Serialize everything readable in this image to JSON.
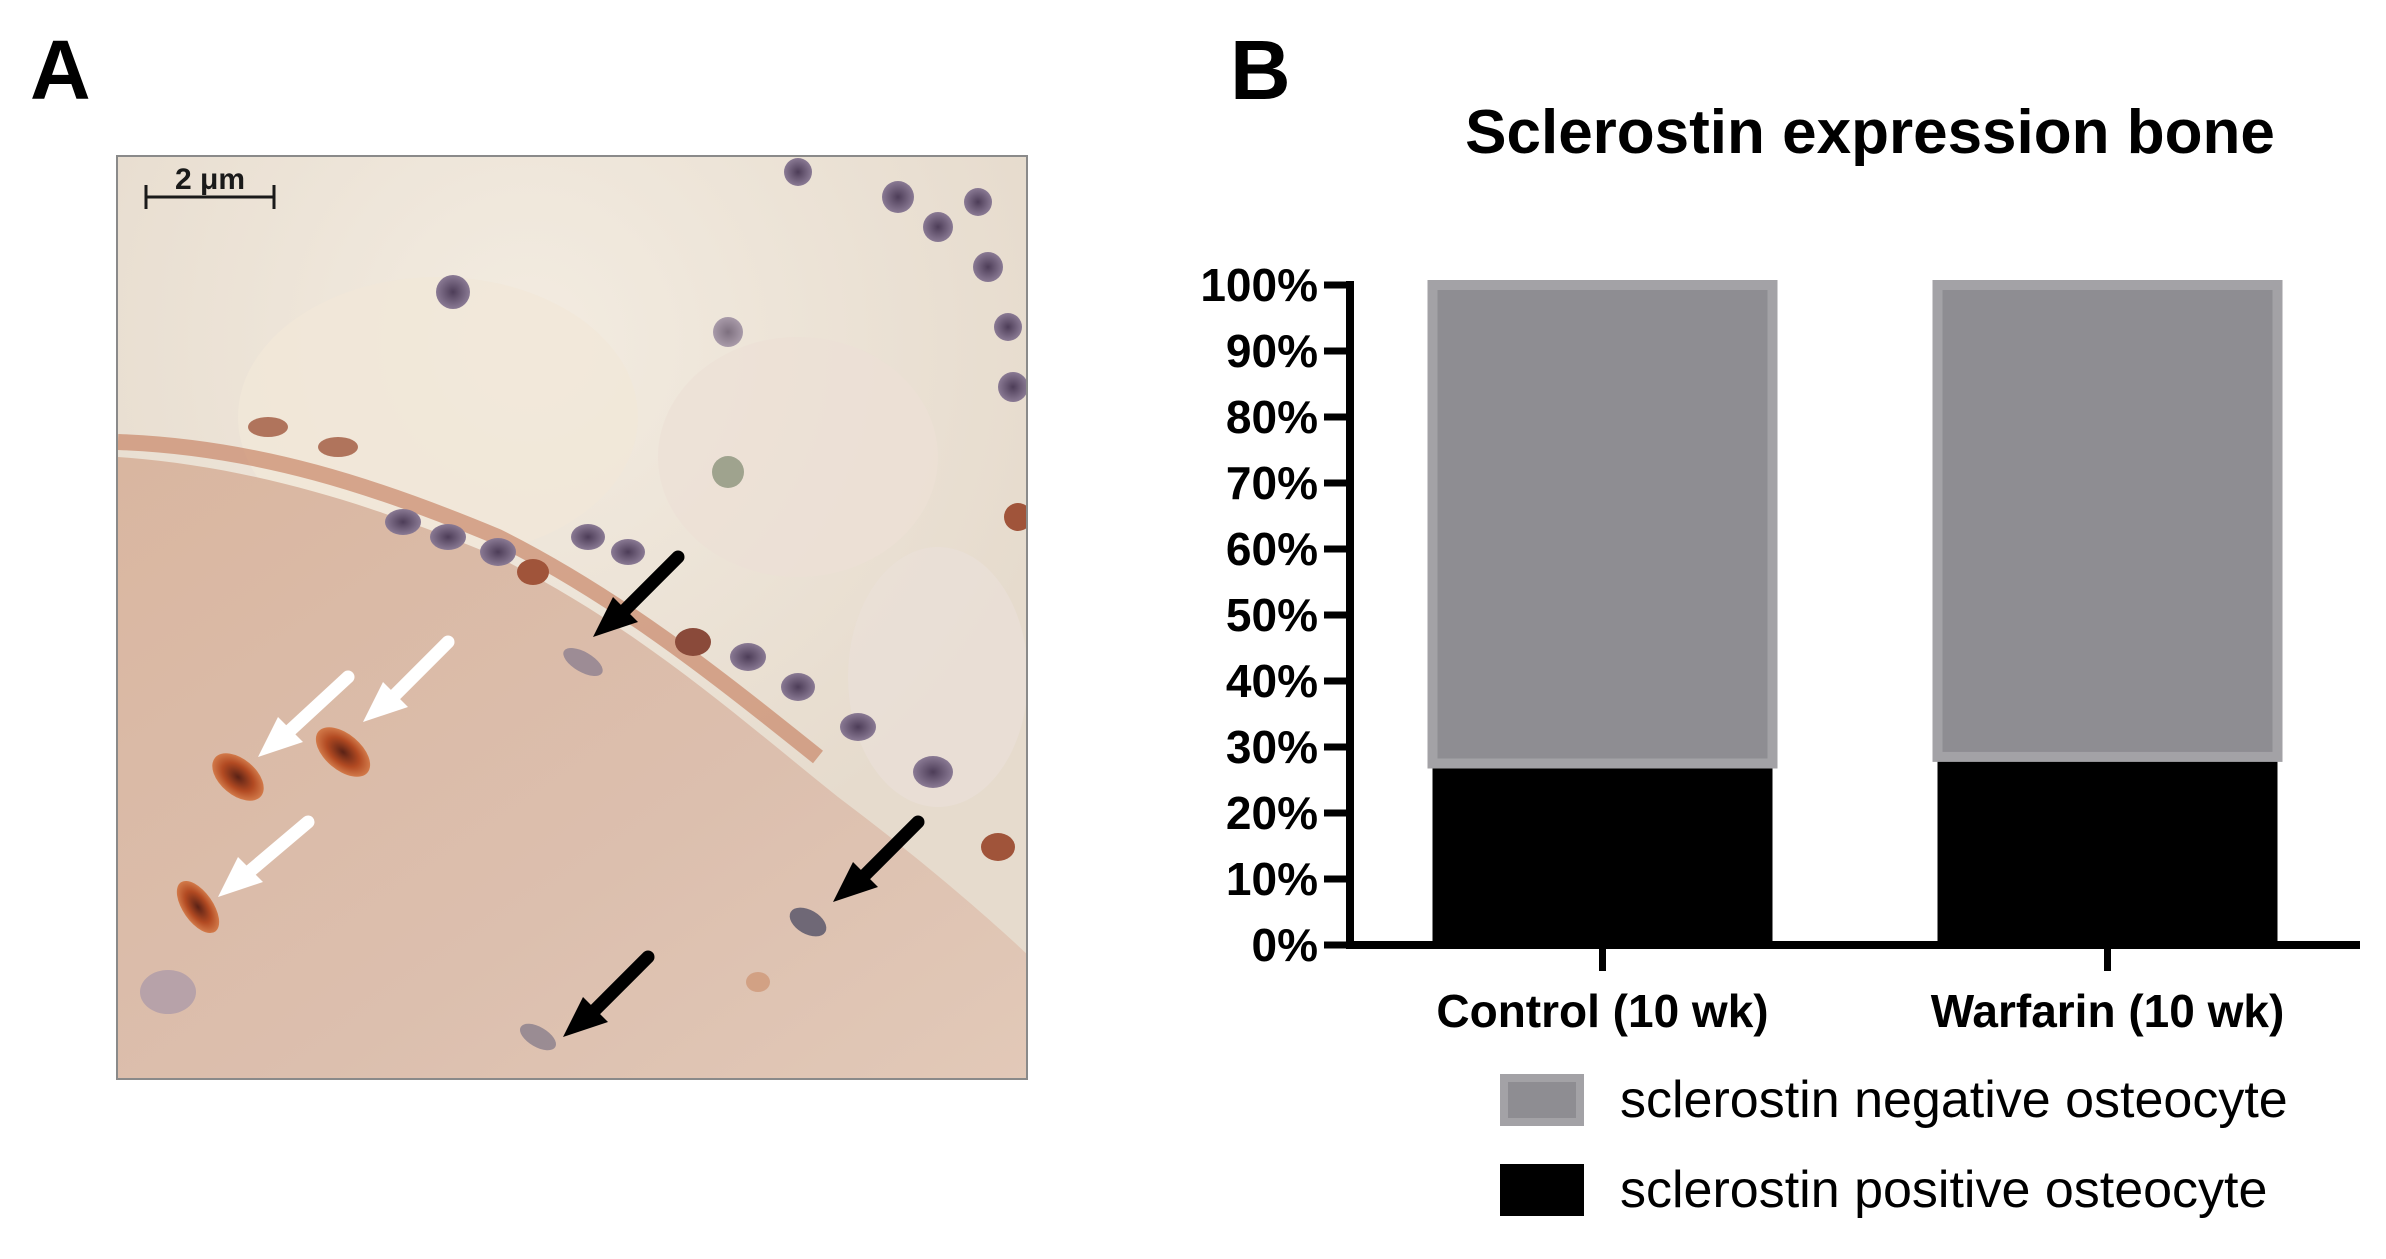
{
  "panels": {
    "a_label": "A",
    "b_label": "B"
  },
  "micrograph": {
    "scale_bar_label": "2 μm",
    "arrow_colors": {
      "white": "#ffffff",
      "black": "#000000"
    }
  },
  "chart_data": {
    "type": "bar",
    "stacked": true,
    "title": "Sclerostin expression bone",
    "categories": [
      "Control (10 wk)",
      "Warfarin (10 wk)"
    ],
    "series": [
      {
        "name": "sclerostin positive osteocyte",
        "values": [
          27.5,
          28.5
        ],
        "color": "#000000"
      },
      {
        "name": "sclerostin negative osteocyte",
        "values": [
          72.5,
          71.5
        ],
        "color": "#8e8d92"
      }
    ],
    "ylim": [
      0,
      100
    ],
    "yticks": [
      "0%",
      "10%",
      "20%",
      "30%",
      "40%",
      "50%",
      "60%",
      "70%",
      "80%",
      "90%",
      "100%"
    ],
    "legend_position": "bottom",
    "grid": false
  }
}
